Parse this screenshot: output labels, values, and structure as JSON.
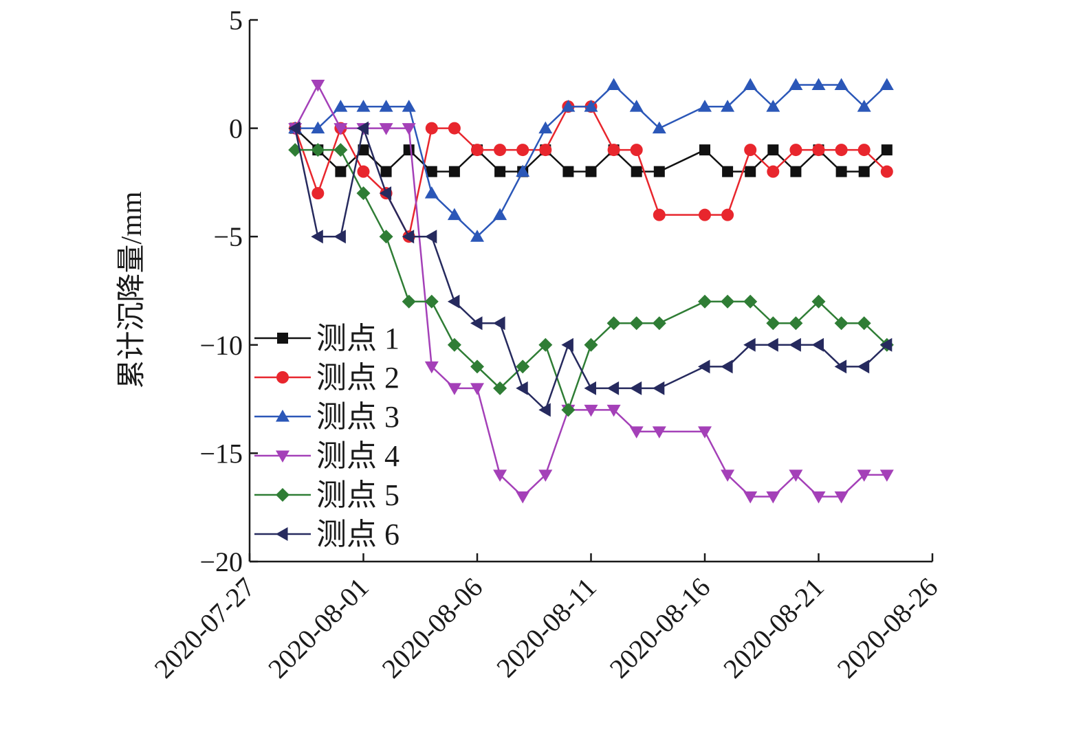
{
  "chart_data": {
    "type": "line",
    "title": "",
    "xlabel": "",
    "ylabel": "累计沉降量/mm",
    "ylim": [
      -20,
      5
    ],
    "yticks": [
      5,
      0,
      -5,
      -10,
      -15,
      -20
    ],
    "ytick_labels": [
      "5",
      "0",
      "−5",
      "−10",
      "−15",
      "−20"
    ],
    "xlim": [
      "2020-07-27",
      "2020-08-26"
    ],
    "xticks": [
      "2020-07-27",
      "2020-08-01",
      "2020-08-06",
      "2020-08-11",
      "2020-08-16",
      "2020-08-21",
      "2020-08-26"
    ],
    "grid": false,
    "legend": "left",
    "x": [
      "2020-07-29",
      "2020-07-30",
      "2020-07-31",
      "2020-08-01",
      "2020-08-02",
      "2020-08-03",
      "2020-08-04",
      "2020-08-05",
      "2020-08-06",
      "2020-08-07",
      "2020-08-08",
      "2020-08-09",
      "2020-08-10",
      "2020-08-11",
      "2020-08-12",
      "2020-08-13",
      "2020-08-14",
      "2020-08-15",
      "2020-08-16",
      "2020-08-17",
      "2020-08-18",
      "2020-08-19",
      "2020-08-20",
      "2020-08-21",
      "2020-08-22",
      "2020-08-23",
      "2020-08-24",
      "2020-08-25"
    ],
    "series": [
      {
        "name": "测点 1",
        "color": "#111111",
        "marker": "square",
        "values": [
          0,
          -1,
          -2,
          -1,
          -2,
          -1,
          -2,
          -2,
          -1,
          -2,
          -2,
          -1,
          -2,
          -2,
          -1,
          -2,
          -2,
          null,
          -1,
          -2,
          -2,
          -1,
          -2,
          -1,
          -2,
          -2,
          -1,
          null
        ]
      },
      {
        "name": "测点 2",
        "color": "#e8262d",
        "marker": "circle",
        "values": [
          0,
          -3,
          0,
          -2,
          -3,
          -5,
          0,
          0,
          -1,
          -1,
          -1,
          -1,
          1,
          1,
          -1,
          -1,
          -4,
          null,
          -4,
          -4,
          -1,
          -2,
          -1,
          -1,
          -1,
          -1,
          -2,
          null
        ]
      },
      {
        "name": "测点 3",
        "color": "#2b57b8",
        "marker": "triangle-up",
        "values": [
          0,
          0,
          1,
          1,
          1,
          1,
          -3,
          -4,
          -5,
          -4,
          -2,
          0,
          1,
          1,
          2,
          1,
          0,
          null,
          1,
          1,
          2,
          1,
          2,
          2,
          2,
          1,
          2,
          null
        ]
      },
      {
        "name": "测点 4",
        "color": "#a440b8",
        "marker": "triangle-down",
        "values": [
          0,
          2,
          0,
          0,
          0,
          0,
          -11,
          -12,
          -12,
          -16,
          -17,
          -16,
          -13,
          -13,
          -13,
          -14,
          -14,
          null,
          -14,
          -16,
          -17,
          -17,
          -16,
          -17,
          -17,
          -16,
          -16,
          null
        ]
      },
      {
        "name": "测点 5",
        "color": "#2f7d35",
        "marker": "diamond",
        "values": [
          -1,
          -1,
          -1,
          -3,
          -5,
          -8,
          -8,
          -10,
          -11,
          -12,
          -11,
          -10,
          -13,
          -10,
          -9,
          -9,
          -9,
          null,
          -8,
          -8,
          -8,
          -9,
          -9,
          -8,
          -9,
          -9,
          -10,
          null
        ]
      },
      {
        "name": "测点 6",
        "color": "#262a5e",
        "marker": "triangle-left",
        "values": [
          0,
          -5,
          -5,
          0,
          -3,
          -5,
          -5,
          -8,
          -9,
          -9,
          -12,
          -13,
          -10,
          -12,
          -12,
          -12,
          -12,
          null,
          -11,
          -11,
          -10,
          -10,
          -10,
          -10,
          -11,
          -11,
          -10,
          null
        ]
      }
    ]
  }
}
